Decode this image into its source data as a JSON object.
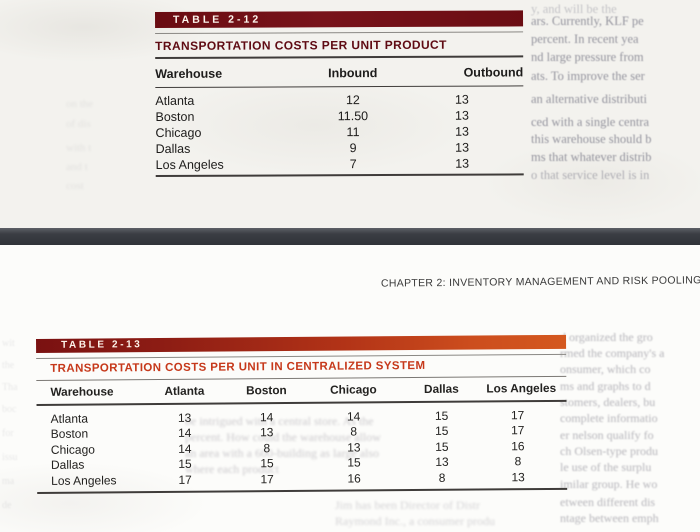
{
  "page": {
    "chapter_header": "CHAPTER 2: INVENTORY MANAGEMENT AND RISK POOLING"
  },
  "table_2_12": {
    "tag": "TABLE 2-12",
    "title": "TRANSPORTATION COSTS PER UNIT PRODUCT",
    "columns": [
      "Warehouse",
      "Inbound",
      "Outbound"
    ],
    "rows": [
      {
        "label": "Atlanta",
        "inbound": "12",
        "outbound": "13"
      },
      {
        "label": "Boston",
        "inbound": "11.50",
        "outbound": "13"
      },
      {
        "label": "Chicago",
        "inbound": "11",
        "outbound": "13"
      },
      {
        "label": "Dallas",
        "inbound": "9",
        "outbound": "13"
      },
      {
        "label": "Los Angeles",
        "inbound": "7",
        "outbound": "13"
      }
    ]
  },
  "table_2_13": {
    "tag": "TABLE 2-13",
    "title": "TRANSPORTATION COSTS PER UNIT IN CENTRALIZED SYSTEM",
    "columns": [
      "Warehouse",
      "Atlanta",
      "Boston",
      "Chicago",
      "Dallas",
      "Los Angeles"
    ],
    "rows": [
      {
        "label": "Atlanta",
        "values": [
          "13",
          "14",
          "14",
          "15",
          "17"
        ]
      },
      {
        "label": "Boston",
        "values": [
          "14",
          "13",
          "8",
          "15",
          "17"
        ]
      },
      {
        "label": "Chicago",
        "values": [
          "14",
          "8",
          "13",
          "15",
          "16"
        ]
      },
      {
        "label": "Dallas",
        "values": [
          "15",
          "15",
          "15",
          "13",
          "8"
        ]
      },
      {
        "label": "Los Angeles",
        "values": [
          "17",
          "17",
          "16",
          "8",
          "13"
        ]
      }
    ]
  },
  "ghost_text": {
    "top_right": [
      "y, and will be the",
      "ars. Currently, KLF pe",
      "percent. In recent yea",
      "nd large pressure from",
      "ats. To improve the ser",
      "an alternative distributi",
      "ced with a single centra",
      "this warehouse should b",
      "ms that whatever distrib",
      "o that service level is in"
    ],
    "top_left": [
      "on the",
      "of dis",
      "with t",
      "and t",
      "cost"
    ],
    "mid_table": [
      "be intrigued with a central store. As the",
      "percent. How could the warehouse allow",
      "an area with a 600-building as large also",
      "where each product"
    ],
    "bottom_right": [
      "d organized the gro",
      "rmed the company's a",
      "onsumer, which co",
      "ms and graphs to d",
      "stomers, dealers, bu",
      "complete informatio",
      "er nelson qualify fo",
      "ch Olsen-type produ",
      "le use of the surplu",
      "imilar group. He wo",
      "etween different dis",
      "ntage between emph"
    ],
    "bottom_center": [
      "Jim has been Director of Distr",
      "Raymond Inc., a consumer produ"
    ],
    "bottom_left": [
      "wit",
      "the",
      "Tha",
      "boc",
      "for",
      "issu",
      "ma",
      "de"
    ]
  },
  "colors": {
    "band_2_12": "#6e0d13",
    "band_2_13_start": "#7a1111",
    "band_2_13_end": "#d4581f",
    "title_2_12": "#5f0b13",
    "title_2_13": "#c6391b",
    "separator_bar": "#3b3e44",
    "paper_top": "#f3f2ee",
    "paper_bottom": "#fcfcfa"
  }
}
